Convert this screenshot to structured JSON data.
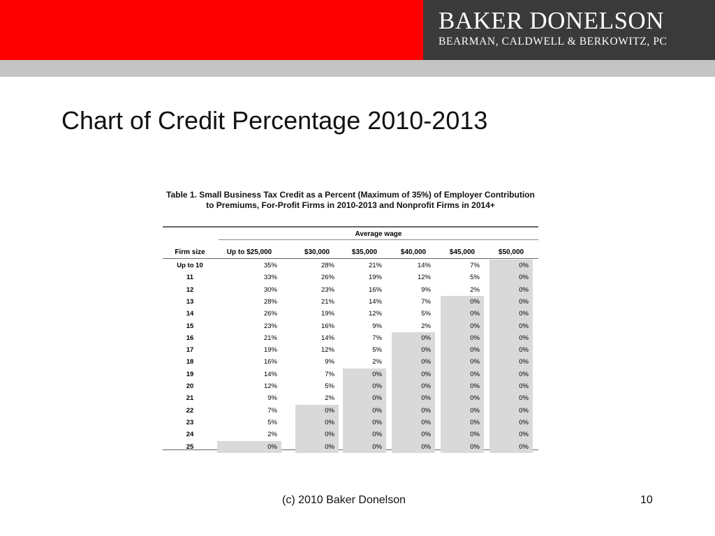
{
  "header": {
    "logo_line1": "BAKER DONELSON",
    "logo_line2": "BEARMAN, CALDWELL & BERKOWITZ, PC",
    "brand_red": "#ff0000",
    "logo_bg": "#3a3a3a",
    "band_gray": "#c4c4c4"
  },
  "slide": {
    "title": "Chart of Credit Percentage 2010-2013"
  },
  "table": {
    "caption": "Table 1. Small Business Tax Credit as a Percent (Maximum of 35%) of Employer Contribution to Premiums, For-Profit Firms in 2010-2013 and Nonprofit Firms in 2014+",
    "group_header": "Average wage",
    "row_header": "Firm size",
    "columns": [
      "Up to $25,000",
      "$30,000",
      "$35,000",
      "$40,000",
      "$45,000",
      "$50,000"
    ],
    "rows": [
      {
        "firm_size": "Up to 10",
        "values": [
          "35%",
          "28%",
          "21%",
          "14%",
          "7%",
          "0%"
        ]
      },
      {
        "firm_size": "11",
        "values": [
          "33%",
          "26%",
          "19%",
          "12%",
          "5%",
          "0%"
        ]
      },
      {
        "firm_size": "12",
        "values": [
          "30%",
          "23%",
          "16%",
          "9%",
          "2%",
          "0%"
        ]
      },
      {
        "firm_size": "13",
        "values": [
          "28%",
          "21%",
          "14%",
          "7%",
          "0%",
          "0%"
        ]
      },
      {
        "firm_size": "14",
        "values": [
          "26%",
          "19%",
          "12%",
          "5%",
          "0%",
          "0%"
        ]
      },
      {
        "firm_size": "15",
        "values": [
          "23%",
          "16%",
          "9%",
          "2%",
          "0%",
          "0%"
        ]
      },
      {
        "firm_size": "16",
        "values": [
          "21%",
          "14%",
          "7%",
          "0%",
          "0%",
          "0%"
        ]
      },
      {
        "firm_size": "17",
        "values": [
          "19%",
          "12%",
          "5%",
          "0%",
          "0%",
          "0%"
        ]
      },
      {
        "firm_size": "18",
        "values": [
          "16%",
          "9%",
          "2%",
          "0%",
          "0%",
          "0%"
        ]
      },
      {
        "firm_size": "19",
        "values": [
          "14%",
          "7%",
          "0%",
          "0%",
          "0%",
          "0%"
        ]
      },
      {
        "firm_size": "20",
        "values": [
          "12%",
          "5%",
          "0%",
          "0%",
          "0%",
          "0%"
        ]
      },
      {
        "firm_size": "21",
        "values": [
          "9%",
          "2%",
          "0%",
          "0%",
          "0%",
          "0%"
        ]
      },
      {
        "firm_size": "22",
        "values": [
          "7%",
          "0%",
          "0%",
          "0%",
          "0%",
          "0%"
        ]
      },
      {
        "firm_size": "23",
        "values": [
          "5%",
          "0%",
          "0%",
          "0%",
          "0%",
          "0%"
        ]
      },
      {
        "firm_size": "24",
        "values": [
          "2%",
          "0%",
          "0%",
          "0%",
          "0%",
          "0%"
        ]
      },
      {
        "firm_size": "25",
        "values": [
          "0%",
          "0%",
          "0%",
          "0%",
          "0%",
          "0%"
        ]
      }
    ]
  },
  "footer": {
    "copyright": "(c) 2010 Baker Donelson",
    "page_number": "10"
  }
}
